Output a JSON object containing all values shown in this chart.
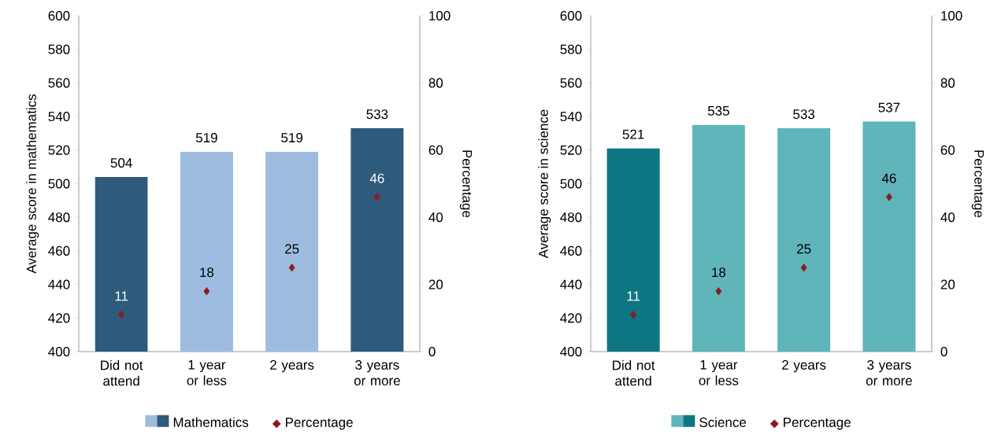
{
  "chart_data": [
    {
      "type": "bar",
      "categories": [
        "Did not attend",
        "1 year or less",
        "2 years",
        "3 years or more"
      ],
      "ylabel": "Average score in mathematics",
      "y2label": "Percentage",
      "ylim": [
        400,
        600
      ],
      "yticks": [
        400,
        420,
        440,
        460,
        480,
        500,
        520,
        540,
        560,
        580,
        600
      ],
      "y2lim": [
        0,
        100
      ],
      "y2ticks": [
        0,
        20,
        40,
        60,
        80,
        100
      ],
      "data_labels": true,
      "legend": "bottom",
      "marker": "diamond",
      "series": [
        {
          "name": "Mathematics",
          "colors": [
            "#2e5a7c",
            "#9dbcdf",
            "#9dbcdf",
            "#2e5a7c"
          ],
          "values": [
            504,
            519,
            519,
            533
          ]
        },
        {
          "name": "Percentage",
          "type": "scatter",
          "axis": "y2",
          "color": "#8b1c1c",
          "values": [
            11,
            18,
            25,
            46
          ]
        }
      ]
    },
    {
      "type": "bar",
      "categories": [
        "Did not attend",
        "1 year or less",
        "2 years",
        "3 years or more"
      ],
      "ylabel": "Average score in science",
      "y2label": "Percentage",
      "ylim": [
        400,
        600
      ],
      "yticks": [
        400,
        420,
        440,
        460,
        480,
        500,
        520,
        540,
        560,
        580,
        600
      ],
      "y2lim": [
        0,
        100
      ],
      "y2ticks": [
        0,
        20,
        40,
        60,
        80,
        100
      ],
      "data_labels": true,
      "legend": "bottom",
      "marker": "diamond",
      "series": [
        {
          "name": "Science",
          "colors": [
            "#0e7682",
            "#5fb5ba",
            "#5fb5ba",
            "#5fb5ba"
          ],
          "values": [
            521,
            535,
            533,
            537
          ]
        },
        {
          "name": "Percentage",
          "type": "scatter",
          "axis": "y2",
          "color": "#8b1c1c",
          "values": [
            11,
            18,
            25,
            46
          ]
        }
      ]
    }
  ]
}
